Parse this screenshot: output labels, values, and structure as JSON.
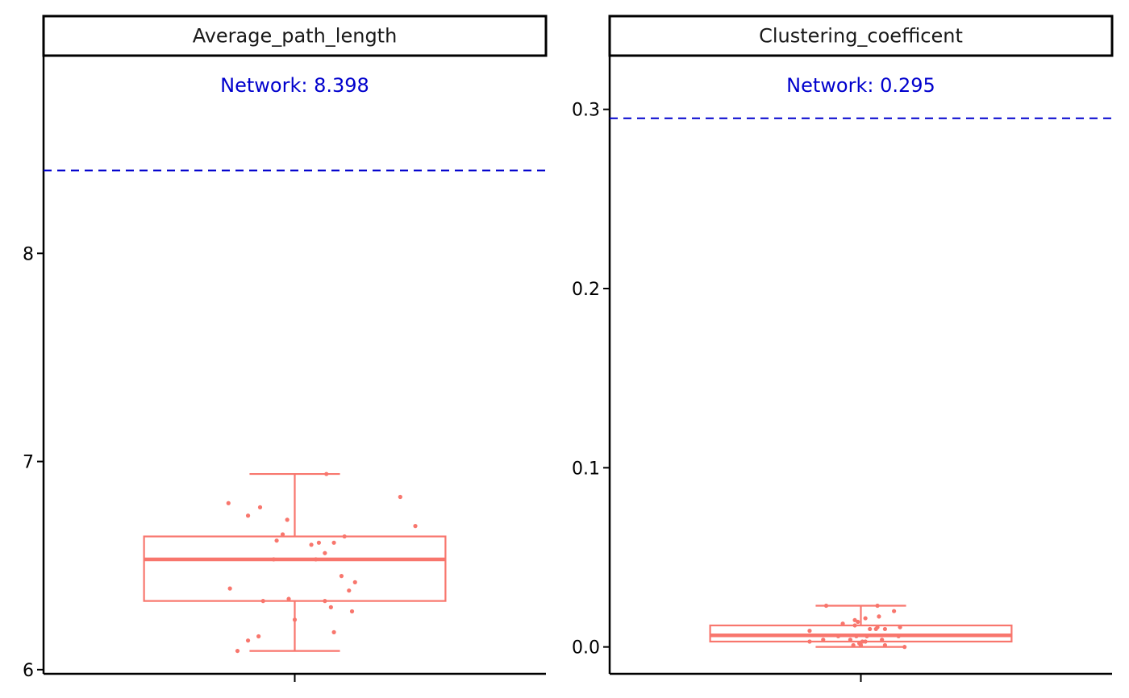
{
  "colors": {
    "box": "#F8766D",
    "reference_line": "#0000CD",
    "axis": "#000000",
    "strip_border": "#000000",
    "strip_text": "#1a1a1a",
    "tick_text": "#000000"
  },
  "chart_data": [
    {
      "type": "box",
      "facet_label": "Average_path_length",
      "title": "",
      "xlabel": "",
      "ylabel": "",
      "ylim": [
        5.98,
        8.95
      ],
      "yticks": [
        6,
        7,
        8
      ],
      "ytick_labels": [
        "6",
        "7",
        "8"
      ],
      "x_tick_count": 1,
      "box": {
        "min": 6.09,
        "q1": 6.33,
        "median": 6.53,
        "q3": 6.64,
        "max": 6.94
      },
      "points": [
        [
          0.21,
          6.94
        ],
        [
          0.7,
          6.83
        ],
        [
          -0.44,
          6.8
        ],
        [
          -0.23,
          6.78
        ],
        [
          -0.31,
          6.74
        ],
        [
          -0.05,
          6.72
        ],
        [
          0.8,
          6.69
        ],
        [
          -0.08,
          6.65
        ],
        [
          0.33,
          6.64
        ],
        [
          -0.12,
          6.62
        ],
        [
          0.16,
          6.61
        ],
        [
          0.26,
          6.61
        ],
        [
          0.11,
          6.6
        ],
        [
          0.2,
          6.56
        ],
        [
          -0.14,
          6.53
        ],
        [
          0.14,
          6.53
        ],
        [
          0.31,
          6.45
        ],
        [
          0.4,
          6.42
        ],
        [
          0.36,
          6.38
        ],
        [
          -0.43,
          6.39
        ],
        [
          -0.04,
          6.34
        ],
        [
          0.2,
          6.33
        ],
        [
          -0.21,
          6.33
        ],
        [
          0.24,
          6.3
        ],
        [
          0.38,
          6.28
        ],
        [
          0.0,
          6.24
        ],
        [
          0.26,
          6.18
        ],
        [
          -0.24,
          6.16
        ],
        [
          -0.31,
          6.14
        ],
        [
          -0.38,
          6.09
        ]
      ],
      "reference": {
        "value": 8.398,
        "label": "Network: 8.398"
      }
    },
    {
      "type": "box",
      "facet_label": "Clustering_coefficent",
      "title": "",
      "xlabel": "",
      "ylabel": "",
      "ylim": [
        -0.015,
        0.33
      ],
      "yticks": [
        0.0,
        0.1,
        0.2,
        0.3
      ],
      "ytick_labels": [
        "0.0",
        "0.1",
        "0.2",
        "0.3"
      ],
      "x_tick_count": 1,
      "box": {
        "min": 0.0,
        "q1": 0.003,
        "median": 0.0065,
        "q3": 0.012,
        "max": 0.023
      },
      "points": [
        [
          -0.23,
          0.023
        ],
        [
          0.11,
          0.023
        ],
        [
          0.22,
          0.02
        ],
        [
          0.12,
          0.017
        ],
        [
          0.03,
          0.016
        ],
        [
          -0.04,
          0.015
        ],
        [
          -0.02,
          0.014
        ],
        [
          -0.12,
          0.013
        ],
        [
          -0.04,
          0.012
        ],
        [
          0.11,
          0.011
        ],
        [
          0.26,
          0.011
        ],
        [
          0.06,
          0.01
        ],
        [
          0.16,
          0.01
        ],
        [
          0.1,
          0.01
        ],
        [
          -0.34,
          0.009
        ],
        [
          -0.03,
          0.006
        ],
        [
          0.04,
          0.006
        ],
        [
          -0.15,
          0.006
        ],
        [
          0.25,
          0.006
        ],
        [
          -0.25,
          0.004
        ],
        [
          0.14,
          0.004
        ],
        [
          -0.07,
          0.004
        ],
        [
          0.01,
          0.003
        ],
        [
          0.03,
          0.003
        ],
        [
          -0.34,
          0.003
        ],
        [
          -0.01,
          0.002
        ],
        [
          0.0,
          0.001
        ],
        [
          -0.05,
          0.001
        ],
        [
          0.16,
          0.001
        ],
        [
          0.29,
          0.0
        ]
      ],
      "reference": {
        "value": 0.295,
        "label": "Network: 0.295"
      }
    }
  ]
}
